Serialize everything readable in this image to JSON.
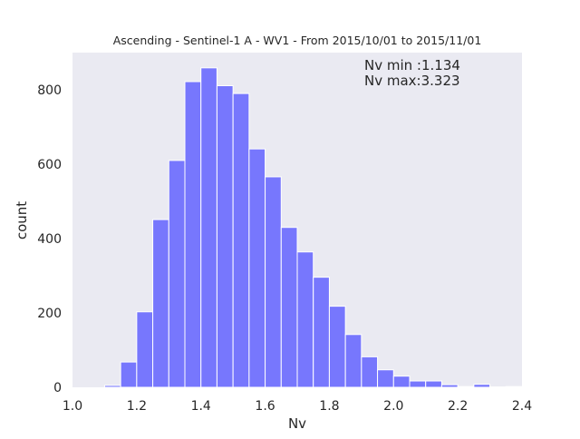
{
  "chart_data": {
    "type": "bar",
    "title": "Ascending - Sentinel-1 A - WV1 - From 2015/10/01 to 2015/11/01",
    "xlabel": "Nv",
    "ylabel": "count",
    "xlim": [
      1.0,
      2.4
    ],
    "ylim": [
      0,
      900
    ],
    "xticks": [
      "1.0",
      "1.2",
      "1.4",
      "1.6",
      "1.8",
      "2.0",
      "2.2",
      "2.4"
    ],
    "yticks": [
      "0",
      "200",
      "400",
      "600",
      "800"
    ],
    "grid": false,
    "bar_color": "#7777fd",
    "background_color": "#eaeaf2",
    "annotations": [
      "Nv min :1.134",
      "Nv max:3.323"
    ],
    "bins": [
      {
        "x0": 1.1,
        "x1": 1.15,
        "count": 5
      },
      {
        "x0": 1.15,
        "x1": 1.2,
        "count": 68
      },
      {
        "x0": 1.2,
        "x1": 1.25,
        "count": 203
      },
      {
        "x0": 1.25,
        "x1": 1.3,
        "count": 451
      },
      {
        "x0": 1.3,
        "x1": 1.35,
        "count": 610
      },
      {
        "x0": 1.35,
        "x1": 1.4,
        "count": 822
      },
      {
        "x0": 1.4,
        "x1": 1.45,
        "count": 859
      },
      {
        "x0": 1.45,
        "x1": 1.5,
        "count": 811
      },
      {
        "x0": 1.5,
        "x1": 1.55,
        "count": 790
      },
      {
        "x0": 1.55,
        "x1": 1.6,
        "count": 641
      },
      {
        "x0": 1.6,
        "x1": 1.65,
        "count": 566
      },
      {
        "x0": 1.65,
        "x1": 1.7,
        "count": 430
      },
      {
        "x0": 1.7,
        "x1": 1.75,
        "count": 364
      },
      {
        "x0": 1.75,
        "x1": 1.8,
        "count": 296
      },
      {
        "x0": 1.8,
        "x1": 1.85,
        "count": 218
      },
      {
        "x0": 1.85,
        "x1": 1.9,
        "count": 142
      },
      {
        "x0": 1.9,
        "x1": 1.95,
        "count": 82
      },
      {
        "x0": 1.95,
        "x1": 2.0,
        "count": 47
      },
      {
        "x0": 2.0,
        "x1": 2.05,
        "count": 30
      },
      {
        "x0": 2.05,
        "x1": 2.1,
        "count": 17
      },
      {
        "x0": 2.1,
        "x1": 2.15,
        "count": 17
      },
      {
        "x0": 2.15,
        "x1": 2.2,
        "count": 7
      },
      {
        "x0": 2.2,
        "x1": 2.25,
        "count": 2
      },
      {
        "x0": 2.25,
        "x1": 2.3,
        "count": 8
      },
      {
        "x0": 2.3,
        "x1": 2.35,
        "count": 1
      },
      {
        "x0": 2.35,
        "x1": 2.4,
        "count": 2
      }
    ]
  }
}
